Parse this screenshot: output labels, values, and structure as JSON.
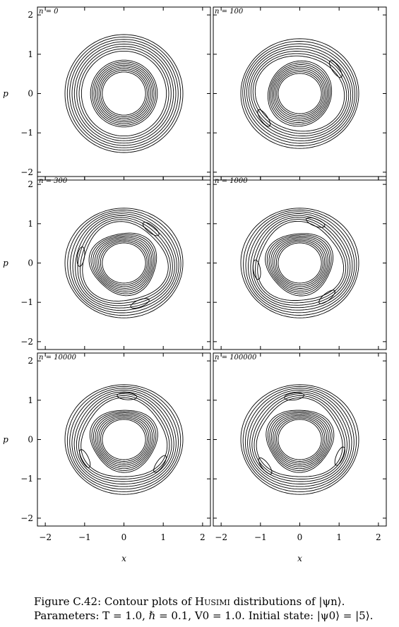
{
  "chart_data": {
    "type": "contour",
    "xlabel": "x",
    "ylabel": "p",
    "xlim": [
      -2.2,
      2.2
    ],
    "ylim": [
      -2.2,
      2.2
    ],
    "xticks": [
      "−2",
      "−1",
      "0",
      "1",
      "2"
    ],
    "yticks": [
      "2",
      "1",
      "0",
      "−1",
      "−2"
    ],
    "xtick_values": [
      -2,
      -1,
      0,
      1,
      2
    ],
    "ytick_values": [
      2,
      1,
      0,
      -1,
      -2
    ],
    "grid": false,
    "outer_radius": 1.5,
    "inner_radius": 0.55,
    "panels": [
      {
        "label": "n = 0",
        "n": 0,
        "levels": 8,
        "lobes": 0,
        "twist": 0.0
      },
      {
        "label": "n = 100",
        "n": 100,
        "levels": 8,
        "lobes": 2,
        "twist": 0.6
      },
      {
        "label": "n = 300",
        "n": 300,
        "levels": 8,
        "lobes": 3,
        "twist": 0.9
      },
      {
        "label": "n = 1000",
        "n": 1000,
        "levels": 8,
        "lobes": 3,
        "twist": 1.2
      },
      {
        "label": "n = 10000",
        "n": 10000,
        "levels": 8,
        "lobes": 3,
        "twist": 1.5
      },
      {
        "label": "n = 100000",
        "n": 100000,
        "levels": 8,
        "lobes": 3,
        "twist": 1.7
      }
    ]
  },
  "caption": {
    "prefix": "Figure C.42: Contour plots of ",
    "name": "Husimi",
    "suffix": " distributions of |ψn⟩.",
    "params": "Parameters: T = 1.0, ℏ = 0.1, V0 = 1.0. Initial state: |ψ0⟩ = |5⟩."
  }
}
